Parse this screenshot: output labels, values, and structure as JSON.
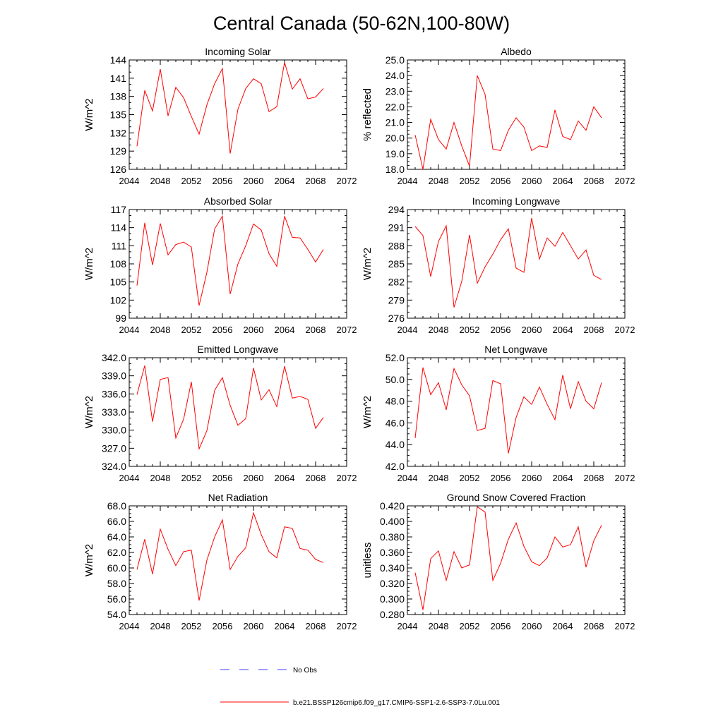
{
  "figure": {
    "title": "Central Canada (50-62N,100-80W)"
  },
  "colors": {
    "model_line": "#ff0000",
    "obs_line": "#3c3cff",
    "axis": "#000000"
  },
  "legend": {
    "obs_label": "No Obs",
    "model_label": "b.e21.BSSP126cmip6.f09_g17.CMIP6-SSP1-2.6-SSP3-7.0Lu.001"
  },
  "chart_data": [
    {
      "type": "line",
      "title": "Incoming Solar",
      "ylabel": "W/m^2",
      "xlim": [
        2044,
        2072
      ],
      "xticks": [
        "2044",
        "2048",
        "2052",
        "2056",
        "2060",
        "2064",
        "2068",
        "2072"
      ],
      "ylim": [
        126,
        144
      ],
      "yticks": [
        "126",
        "129",
        "132",
        "135",
        "138",
        "141",
        "144"
      ],
      "x": [
        2045,
        2046,
        2047,
        2048,
        2049,
        2050,
        2051,
        2052,
        2053,
        2054,
        2055,
        2056,
        2057,
        2058,
        2059,
        2060,
        2061,
        2062,
        2063,
        2064,
        2065,
        2066,
        2067,
        2068,
        2069
      ],
      "series": [
        {
          "values": [
            129.8,
            139.0,
            135.6,
            142.5,
            134.8,
            139.5,
            137.8,
            134.7,
            131.8,
            136.6,
            140.1,
            142.6,
            128.6,
            135.9,
            139.3,
            140.9,
            140.1,
            135.5,
            136.3,
            143.6,
            139.2,
            140.9,
            137.6,
            137.9,
            139.3
          ]
        }
      ]
    },
    {
      "type": "line",
      "title": "Albedo",
      "ylabel": "% reflected",
      "xlim": [
        2044,
        2072
      ],
      "xticks": [
        "2044",
        "2048",
        "2052",
        "2056",
        "2060",
        "2064",
        "2068",
        "2072"
      ],
      "ylim": [
        18.0,
        25.0
      ],
      "yticks": [
        "18.0",
        "19.0",
        "20.0",
        "21.0",
        "22.0",
        "23.0",
        "24.0",
        "25.0"
      ],
      "x": [
        2045,
        2046,
        2047,
        2048,
        2049,
        2050,
        2051,
        2052,
        2053,
        2054,
        2055,
        2056,
        2057,
        2058,
        2059,
        2060,
        2061,
        2062,
        2063,
        2064,
        2065,
        2066,
        2067,
        2068,
        2069
      ],
      "series": [
        {
          "values": [
            20.2,
            18.0,
            21.2,
            19.9,
            19.3,
            21.0,
            19.5,
            18.2,
            24.0,
            22.8,
            19.3,
            19.2,
            20.5,
            21.3,
            20.7,
            19.2,
            19.5,
            19.4,
            21.8,
            20.1,
            19.9,
            21.1,
            20.5,
            22.0,
            21.3
          ]
        }
      ]
    },
    {
      "type": "line",
      "title": "Absorbed Solar",
      "ylabel": "W/m^2",
      "xlim": [
        2044,
        2072
      ],
      "xticks": [
        "2044",
        "2048",
        "2052",
        "2056",
        "2060",
        "2064",
        "2068",
        "2072"
      ],
      "ylim": [
        99,
        117
      ],
      "yticks": [
        "99",
        "102",
        "105",
        "108",
        "111",
        "114",
        "117"
      ],
      "x": [
        2045,
        2046,
        2047,
        2048,
        2049,
        2050,
        2051,
        2052,
        2053,
        2054,
        2055,
        2056,
        2057,
        2058,
        2059,
        2060,
        2061,
        2062,
        2063,
        2064,
        2065,
        2066,
        2067,
        2068,
        2069
      ],
      "series": [
        {
          "values": [
            104.4,
            114.8,
            107.8,
            114.7,
            109.5,
            111.2,
            111.6,
            110.8,
            101.1,
            106.6,
            113.8,
            115.9,
            103.0,
            108.0,
            111.0,
            114.6,
            113.6,
            109.7,
            107.6,
            115.9,
            112.4,
            112.3,
            110.4,
            108.3,
            110.4
          ]
        }
      ]
    },
    {
      "type": "line",
      "title": "Incoming Longwave",
      "ylabel": "W/m^2",
      "xlim": [
        2044,
        2072
      ],
      "xticks": [
        "2044",
        "2048",
        "2052",
        "2056",
        "2060",
        "2064",
        "2068",
        "2072"
      ],
      "ylim": [
        276,
        294
      ],
      "yticks": [
        "276",
        "279",
        "282",
        "285",
        "288",
        "291",
        "294"
      ],
      "x": [
        2045,
        2046,
        2047,
        2048,
        2049,
        2050,
        2051,
        2052,
        2053,
        2054,
        2055,
        2056,
        2057,
        2058,
        2059,
        2060,
        2061,
        2062,
        2063,
        2064,
        2065,
        2066,
        2067,
        2068,
        2069
      ],
      "series": [
        {
          "values": [
            291.2,
            289.7,
            282.9,
            288.7,
            291.3,
            277.8,
            282.1,
            289.8,
            281.8,
            284.5,
            286.6,
            289.0,
            290.8,
            284.3,
            283.6,
            292.6,
            285.8,
            289.3,
            287.9,
            290.2,
            288.0,
            285.8,
            287.3,
            283.1,
            282.4
          ]
        }
      ]
    },
    {
      "type": "line",
      "title": "Emitted Longwave",
      "ylabel": "W/m^2",
      "xlim": [
        2044,
        2072
      ],
      "xticks": [
        "2044",
        "2048",
        "2052",
        "2056",
        "2060",
        "2064",
        "2068",
        "2072"
      ],
      "ylim": [
        324.0,
        342.0
      ],
      "yticks": [
        "324.0",
        "327.0",
        "330.0",
        "333.0",
        "336.0",
        "339.0",
        "342.0"
      ],
      "x": [
        2045,
        2046,
        2047,
        2048,
        2049,
        2050,
        2051,
        2052,
        2053,
        2054,
        2055,
        2056,
        2057,
        2058,
        2059,
        2060,
        2061,
        2062,
        2063,
        2064,
        2065,
        2066,
        2067,
        2068,
        2069
      ],
      "series": [
        {
          "values": [
            335.9,
            340.7,
            331.4,
            338.4,
            338.7,
            328.7,
            331.8,
            338.0,
            326.9,
            329.9,
            336.6,
            338.7,
            334.1,
            330.8,
            331.9,
            340.3,
            335.0,
            336.7,
            333.9,
            340.6,
            335.3,
            335.6,
            335.1,
            330.3,
            332.1
          ]
        }
      ]
    },
    {
      "type": "line",
      "title": "Net Longwave",
      "ylabel": "W/m^2",
      "xlim": [
        2044,
        2072
      ],
      "xticks": [
        "2044",
        "2048",
        "2052",
        "2056",
        "2060",
        "2064",
        "2068",
        "2072"
      ],
      "ylim": [
        42.0,
        52.0
      ],
      "yticks": [
        "42.0",
        "44.0",
        "46.0",
        "48.0",
        "50.0",
        "52.0"
      ],
      "x": [
        2045,
        2046,
        2047,
        2048,
        2049,
        2050,
        2051,
        2052,
        2053,
        2054,
        2055,
        2056,
        2057,
        2058,
        2059,
        2060,
        2061,
        2062,
        2063,
        2064,
        2065,
        2066,
        2067,
        2068,
        2069
      ],
      "series": [
        {
          "values": [
            44.6,
            51.1,
            48.6,
            49.7,
            47.2,
            51.0,
            49.5,
            48.5,
            45.3,
            45.5,
            49.9,
            49.6,
            43.2,
            46.5,
            48.4,
            47.7,
            49.3,
            47.7,
            46.3,
            50.4,
            47.3,
            49.8,
            48.0,
            47.3,
            49.7
          ]
        }
      ]
    },
    {
      "type": "line",
      "title": "Net Radiation",
      "ylabel": "W/m^2",
      "xlim": [
        2044,
        2072
      ],
      "xticks": [
        "2044",
        "2048",
        "2052",
        "2056",
        "2060",
        "2064",
        "2068",
        "2072"
      ],
      "ylim": [
        54.0,
        68.0
      ],
      "yticks": [
        "54.0",
        "56.0",
        "58.0",
        "60.0",
        "62.0",
        "64.0",
        "66.0",
        "68.0"
      ],
      "x": [
        2045,
        2046,
        2047,
        2048,
        2049,
        2050,
        2051,
        2052,
        2053,
        2054,
        2055,
        2056,
        2057,
        2058,
        2059,
        2060,
        2061,
        2062,
        2063,
        2064,
        2065,
        2066,
        2067,
        2068,
        2069
      ],
      "series": [
        {
          "values": [
            59.8,
            63.7,
            59.2,
            65.0,
            62.4,
            60.3,
            62.1,
            62.3,
            55.8,
            61.0,
            64.0,
            66.2,
            59.8,
            61.5,
            62.6,
            67.1,
            64.3,
            62.1,
            61.3,
            65.3,
            65.1,
            62.5,
            62.3,
            61.1,
            60.7
          ]
        }
      ]
    },
    {
      "type": "line",
      "title": "Ground Snow Covered Fraction",
      "ylabel": "unitless",
      "xlim": [
        2044,
        2072
      ],
      "xticks": [
        "2044",
        "2048",
        "2052",
        "2056",
        "2060",
        "2064",
        "2068",
        "2072"
      ],
      "ylim": [
        0.28,
        0.42
      ],
      "yticks": [
        "0.280",
        "0.300",
        "0.320",
        "0.340",
        "0.360",
        "0.380",
        "0.400",
        "0.420"
      ],
      "x": [
        2045,
        2046,
        2047,
        2048,
        2049,
        2050,
        2051,
        2052,
        2053,
        2054,
        2055,
        2056,
        2057,
        2058,
        2059,
        2060,
        2061,
        2062,
        2063,
        2064,
        2065,
        2066,
        2067,
        2068,
        2069
      ],
      "series": [
        {
          "values": [
            0.334,
            0.286,
            0.352,
            0.362,
            0.324,
            0.361,
            0.34,
            0.344,
            0.419,
            0.412,
            0.324,
            0.346,
            0.377,
            0.398,
            0.368,
            0.348,
            0.343,
            0.353,
            0.38,
            0.367,
            0.37,
            0.393,
            0.341,
            0.375,
            0.395
          ]
        }
      ]
    }
  ]
}
